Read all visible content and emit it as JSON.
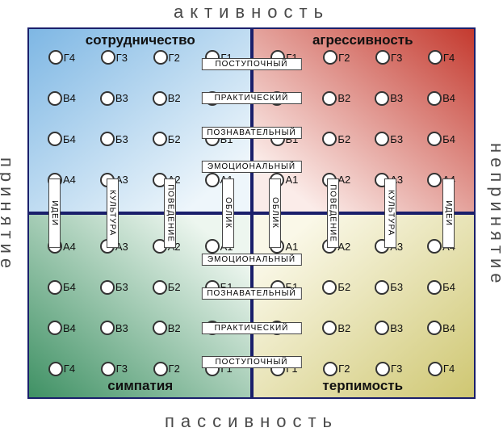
{
  "axes": {
    "top": "активность",
    "bottom": "пассивность",
    "left": "принятие",
    "right": "непринятие"
  },
  "quadrants": {
    "tl": {
      "title": "сотрудничество",
      "gradient": {
        "from": "#7eb7e4",
        "to": "#eef6fb"
      },
      "dir": "to bottom right"
    },
    "tr": {
      "title": "агрессивность",
      "gradient": {
        "from": "#c43a2f",
        "to": "#fbece9"
      },
      "dir": "to bottom left"
    },
    "bl": {
      "title": "симпатия",
      "gradient": {
        "from": "#3f9164",
        "to": "#edf6ef"
      },
      "dir": "to top right"
    },
    "br": {
      "title": "терпимость",
      "gradient": {
        "from": "#cfc772",
        "to": "#faf8e8"
      },
      "dir": "to top left"
    }
  },
  "row_labels_upper": [
    "ПОСТУПОЧНЫЙ",
    "ПРАКТИЧЕСКИЙ",
    "ПОЗНАВАТЕЛЬНЫЙ",
    "ЭМОЦИОНАЛЬНЫЙ"
  ],
  "row_labels_lower": [
    "ЭМОЦИОНАЛЬНЫЙ",
    "ПОЗНАВАТЕЛЬНЫЙ",
    "ПРАКТИЧЕСКИЙ",
    "ПОСТУПОЧНЫЙ"
  ],
  "col_labels_left": [
    "ИДЕИ",
    "КУЛЬТУРА",
    "ПОВЕДЕНИЕ",
    "ОБЛИК"
  ],
  "col_labels_right": [
    "ОБЛИК",
    "ПОВЕДЕНИЕ",
    "КУЛЬТУРА",
    "ИДЕИ"
  ],
  "left_order": [
    "4",
    "3",
    "2",
    "1"
  ],
  "right_order": [
    "1",
    "2",
    "3",
    "4"
  ],
  "row_letters_upper": [
    "Г",
    "В",
    "Б",
    "А"
  ],
  "row_letters_lower": [
    "А",
    "Б",
    "В",
    "Г"
  ],
  "style": {
    "circle_diameter": 18,
    "circle_border": "#333333",
    "divider_color": "#1a1f6b",
    "axis_font_size": 22,
    "title_font_size": 17,
    "cell_font_size": 13,
    "label_font_size": 10,
    "label_bg": "#ffffff",
    "label_border": "#444444"
  }
}
